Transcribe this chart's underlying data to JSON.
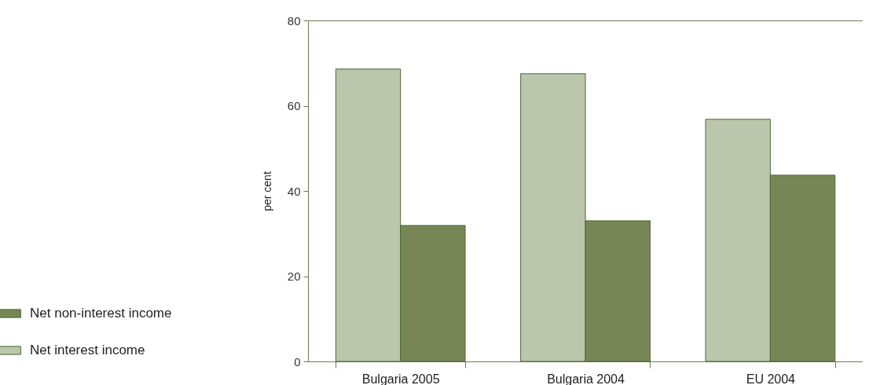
{
  "chart_data": {
    "type": "bar",
    "ylabel": "per cent",
    "categories": [
      "Bulgaria 2005",
      "Bulgaria 2004",
      "EU 2004"
    ],
    "series": [
      {
        "name": "Net interest income",
        "color": "#bbc6ac",
        "values": [
          68.6,
          67.5,
          56.8
        ]
      },
      {
        "name": "Net non-interest income",
        "color": "#768755",
        "values": [
          31.9,
          33.0,
          43.7
        ]
      }
    ],
    "ylim": [
      0,
      80
    ],
    "yticks": [
      0,
      20,
      40,
      60,
      80
    ],
    "grid": false,
    "legend": "left"
  }
}
